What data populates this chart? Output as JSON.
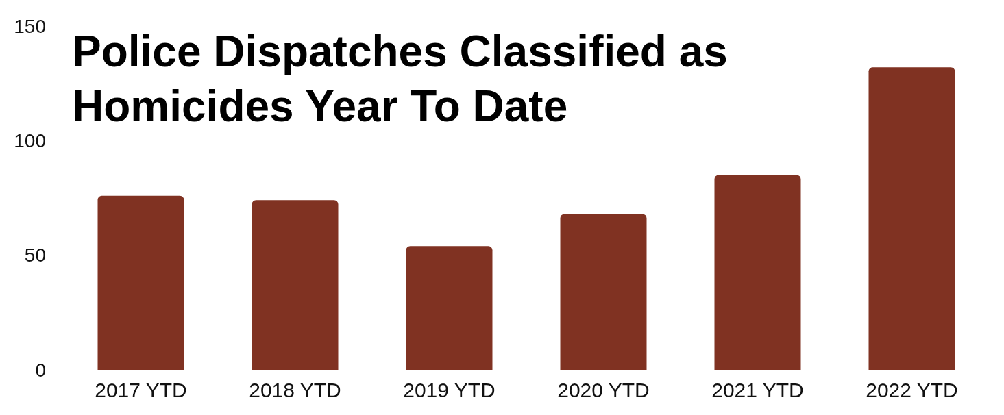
{
  "chart_data": {
    "type": "bar",
    "title": "Police Dispatches Classified as Homicides Year To Date",
    "categories": [
      "2017 YTD",
      "2018 YTD",
      "2019 YTD",
      "2020 YTD",
      "2021 YTD",
      "2022 YTD"
    ],
    "values": [
      76,
      74,
      54,
      68,
      85,
      132
    ],
    "color": "#803222",
    "ylim": [
      0,
      150
    ],
    "yticks": [
      0,
      50,
      100,
      150
    ],
    "grid": false
  }
}
